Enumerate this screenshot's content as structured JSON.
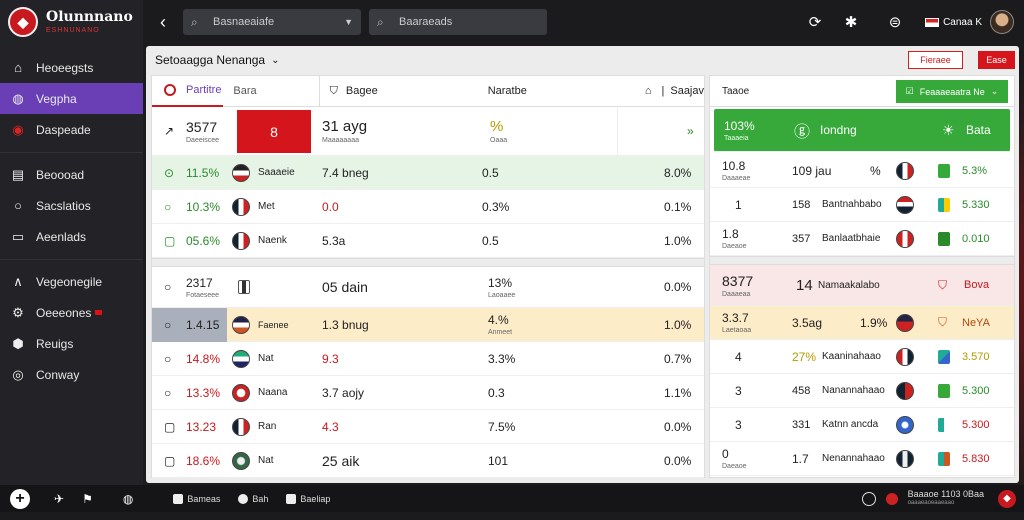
{
  "app": {
    "logo_text": "Olunnnano",
    "logo_sub": "ESHNUNANO"
  },
  "sidebar": {
    "items": [
      {
        "label": "Heoeegsts",
        "icon": "home-icon"
      },
      {
        "label": "Vegpha",
        "icon": "inbox-icon",
        "active": true
      },
      {
        "label": "Daspeade",
        "icon": "badge-icon"
      },
      {
        "label": "Beoooad",
        "icon": "cart-icon"
      },
      {
        "label": "Sacslatios",
        "icon": "circle-icon"
      },
      {
        "label": "Aeenlads",
        "icon": "list-icon"
      },
      {
        "label": "Vegeonegile",
        "icon": "chevron-up-icon"
      },
      {
        "label": "Oeeeones",
        "icon": "gear-icon"
      },
      {
        "label": "Reuigs",
        "icon": "shield-icon"
      },
      {
        "label": "Conway",
        "icon": "globe-icon"
      }
    ]
  },
  "topbar": {
    "search1": "Basnaeaiafe",
    "search2": "Baaraeads",
    "user_name": "Canaa K"
  },
  "main": {
    "title": "Setoaagga Nenanga",
    "btn_outline": "Fieraee",
    "btn_red": "Ease",
    "tabs": {
      "t1": "Partitre",
      "t2": "Bara",
      "t3": "Bagee",
      "t4": "Naratbe",
      "t5": "Saajav"
    },
    "rows": [
      {
        "a": "3577",
        "a_sub": "Daeeiscee",
        "b": "8",
        "b_color": "red",
        "c": "31 ayg",
        "c_sub": "Maaaaaaaa",
        "d": "%",
        "d_sub": "Oaaa",
        "e": "»",
        "highlight": "top"
      },
      {
        "a": "11.5%",
        "a_color": "green",
        "b": "Saaaeie",
        "c": "7.4 bneg",
        "d": "0.5",
        "e": "8.0%",
        "highlight": "green"
      },
      {
        "a": "10.3%",
        "a_color": "green",
        "b": "Met",
        "c": "0.0",
        "c_color": "red",
        "d": "0.3%",
        "e": "0.1%"
      },
      {
        "a": "05.6%",
        "a_color": "green",
        "b": "Naenk",
        "c": "5.3a",
        "d": "0.5",
        "e": "1.0%"
      },
      {
        "a": "2317",
        "a_sub": "Fotaeseee",
        "b": "",
        "c": "05 dain",
        "d": "13%",
        "d_sub": "Laoaaee",
        "e": "0.0%"
      },
      {
        "a": "1.4.15",
        "b": "Faenee",
        "c": "1.3 bnug",
        "d": "4.%",
        "d_sub": "Anmeet",
        "e": "1.0%",
        "highlight": "yellow"
      },
      {
        "a": "14.8%",
        "a_color": "red",
        "b": "Nat",
        "c": "9.3",
        "c_color": "red",
        "d": "3.3%",
        "e": "0.7%"
      },
      {
        "a": "13.3%",
        "a_color": "red",
        "b": "Naana",
        "c": "3.7 aojy",
        "d": "0.3",
        "e": "1.1%"
      },
      {
        "a": "13.23",
        "a_color": "red",
        "b": "Ran",
        "c": "4.3",
        "c_color": "red",
        "d": "7.5%",
        "e": "0.0%"
      },
      {
        "a": "18.6%",
        "a_color": "red",
        "b": "Nat",
        "c": "25 aik",
        "d": "101",
        "e": "0.0%"
      }
    ]
  },
  "right": {
    "tab": "Taaoe",
    "btn": "Feaaaeaatra Ne",
    "head": {
      "a": "103%",
      "a_sub": "Taaaeia",
      "name": "Iondng",
      "score": "Bata"
    },
    "rows": [
      {
        "a": "10.8",
        "a_sub": "Daaaeae",
        "b": "109 jau",
        "c": "%",
        "d": "5.3%"
      },
      {
        "a": "1",
        "b": "158",
        "c": "Bantnahbabo",
        "d": "5.330"
      },
      {
        "a": "1.8",
        "a_sub": "Daeaoe",
        "b": "357",
        "c": "Banlaatbhaie",
        "d": "0.010"
      },
      {
        "a": "8377",
        "a_sub": "Daaaeaa",
        "b": "14",
        "c": "Namaakalabo",
        "d": "Bova"
      },
      {
        "a": "3.3.7",
        "a_sub": "Laetaoaa",
        "b": "3.5ag",
        "c": "1.9%",
        "d": "NeYA"
      },
      {
        "a": "4",
        "b": "27%",
        "c": "Kaaninahaao",
        "d": "3.570"
      },
      {
        "a": "3",
        "b": "458",
        "c": "Nanannahaao",
        "d": "5.300"
      },
      {
        "a": "3",
        "b": "331",
        "c": "Katnn ancda",
        "d": "5.300"
      },
      {
        "a": "0",
        "a_sub": "Daeaoe",
        "b": "1.7",
        "c": "Nenannahaao",
        "d": "5.830"
      }
    ]
  },
  "bottom": {
    "i1": "Bameas",
    "i2": "Bah",
    "i3": "Baeliap",
    "status": "Baaaoe 1103 0Baa",
    "status_sub": "oaaaeaoeaaeaao"
  }
}
